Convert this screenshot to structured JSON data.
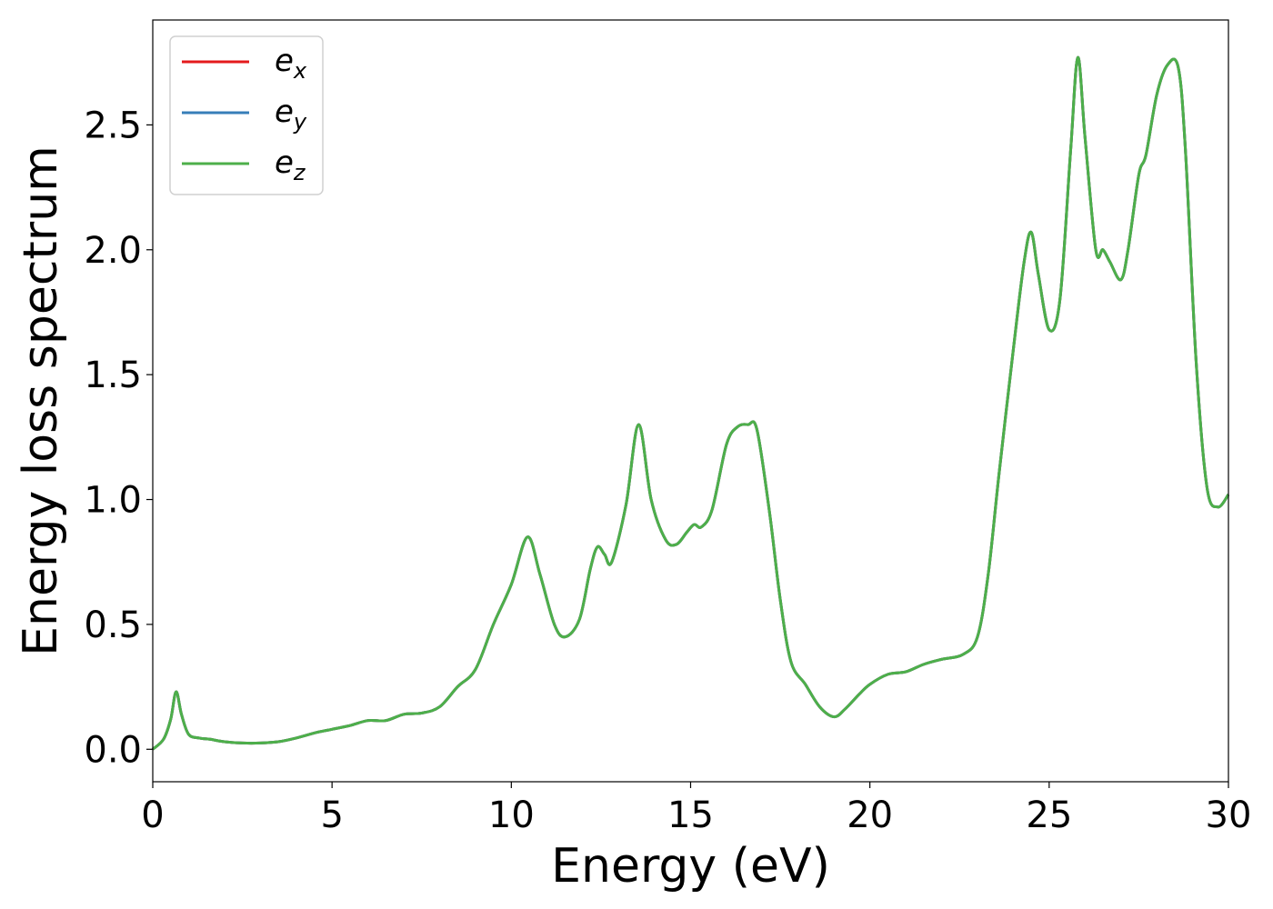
{
  "chart_data": {
    "type": "line",
    "title": "",
    "xlabel": "Energy (eV)",
    "ylabel": "Energy loss spectrum",
    "xlim": [
      0,
      30
    ],
    "ylim": [
      -0.13,
      2.92
    ],
    "xticks": [
      0,
      5,
      10,
      15,
      20,
      25,
      30
    ],
    "yticks": [
      0.0,
      0.5,
      1.0,
      1.5,
      2.0,
      2.5
    ],
    "xtick_labels": [
      "0",
      "5",
      "10",
      "15",
      "20",
      "25",
      "30"
    ],
    "ytick_labels": [
      "0.0",
      "0.5",
      "1.0",
      "1.5",
      "2.0",
      "2.5"
    ],
    "grid": false,
    "legend_position": "top-left",
    "series": [
      {
        "name_base": "e",
        "name_sub": "x",
        "color": "#e41a1c",
        "x": [
          0,
          0.3,
          0.5,
          0.65,
          0.8,
          1.0,
          1.3,
          1.6,
          2.0,
          2.5,
          3.0,
          3.5,
          4.0,
          4.5,
          5.0,
          5.5,
          6.0,
          6.5,
          7.0,
          7.5,
          8.0,
          8.5,
          9.0,
          9.5,
          10.0,
          10.45,
          10.8,
          11.2,
          11.5,
          11.9,
          12.2,
          12.4,
          12.6,
          12.8,
          13.2,
          13.55,
          13.9,
          14.3,
          14.6,
          14.9,
          15.1,
          15.3,
          15.6,
          16.0,
          16.3,
          16.6,
          16.85,
          17.2,
          17.5,
          17.8,
          18.2,
          18.6,
          19.0,
          19.3,
          19.7,
          20.0,
          20.5,
          21.0,
          21.5,
          22.0,
          22.6,
          23.0,
          23.3,
          23.6,
          24.0,
          24.3,
          24.5,
          24.7,
          25.0,
          25.3,
          25.6,
          25.8,
          26.0,
          26.3,
          26.5,
          26.7,
          27.0,
          27.2,
          27.5,
          27.7,
          28.0,
          28.3,
          28.6,
          28.8,
          29.1,
          29.4,
          29.7,
          30.0
        ],
        "y": [
          0.0,
          0.04,
          0.12,
          0.23,
          0.14,
          0.06,
          0.045,
          0.04,
          0.03,
          0.025,
          0.025,
          0.03,
          0.045,
          0.065,
          0.08,
          0.095,
          0.115,
          0.115,
          0.14,
          0.145,
          0.17,
          0.25,
          0.32,
          0.5,
          0.66,
          0.85,
          0.7,
          0.5,
          0.45,
          0.52,
          0.72,
          0.81,
          0.78,
          0.75,
          0.98,
          1.3,
          1.0,
          0.84,
          0.82,
          0.87,
          0.9,
          0.89,
          0.96,
          1.22,
          1.29,
          1.3,
          1.28,
          0.95,
          0.6,
          0.35,
          0.26,
          0.17,
          0.13,
          0.16,
          0.22,
          0.26,
          0.3,
          0.31,
          0.34,
          0.36,
          0.38,
          0.45,
          0.7,
          1.1,
          1.6,
          1.95,
          2.07,
          1.9,
          1.68,
          1.8,
          2.4,
          2.77,
          2.45,
          2.0,
          2.0,
          1.95,
          1.88,
          2.0,
          2.3,
          2.38,
          2.62,
          2.74,
          2.73,
          2.4,
          1.55,
          1.05,
          0.97,
          1.02
        ]
      },
      {
        "name_base": "e",
        "name_sub": "y",
        "color": "#377eb8",
        "x": [
          0,
          0.3,
          0.5,
          0.65,
          0.8,
          1.0,
          1.3,
          1.6,
          2.0,
          2.5,
          3.0,
          3.5,
          4.0,
          4.5,
          5.0,
          5.5,
          6.0,
          6.5,
          7.0,
          7.5,
          8.0,
          8.5,
          9.0,
          9.5,
          10.0,
          10.45,
          10.8,
          11.2,
          11.5,
          11.9,
          12.2,
          12.4,
          12.6,
          12.8,
          13.2,
          13.55,
          13.9,
          14.3,
          14.6,
          14.9,
          15.1,
          15.3,
          15.6,
          16.0,
          16.3,
          16.6,
          16.85,
          17.2,
          17.5,
          17.8,
          18.2,
          18.6,
          19.0,
          19.3,
          19.7,
          20.0,
          20.5,
          21.0,
          21.5,
          22.0,
          22.6,
          23.0,
          23.3,
          23.6,
          24.0,
          24.3,
          24.5,
          24.7,
          25.0,
          25.3,
          25.6,
          25.8,
          26.0,
          26.3,
          26.5,
          26.7,
          27.0,
          27.2,
          27.5,
          27.7,
          28.0,
          28.3,
          28.6,
          28.8,
          29.1,
          29.4,
          29.7,
          30.0
        ],
        "y": [
          0.0,
          0.04,
          0.12,
          0.23,
          0.14,
          0.06,
          0.045,
          0.04,
          0.03,
          0.025,
          0.025,
          0.03,
          0.045,
          0.065,
          0.08,
          0.095,
          0.115,
          0.115,
          0.14,
          0.145,
          0.17,
          0.25,
          0.32,
          0.5,
          0.66,
          0.85,
          0.7,
          0.5,
          0.45,
          0.52,
          0.72,
          0.81,
          0.78,
          0.75,
          0.98,
          1.3,
          1.0,
          0.84,
          0.82,
          0.87,
          0.9,
          0.89,
          0.96,
          1.22,
          1.29,
          1.3,
          1.28,
          0.95,
          0.6,
          0.35,
          0.26,
          0.17,
          0.13,
          0.16,
          0.22,
          0.26,
          0.3,
          0.31,
          0.34,
          0.36,
          0.38,
          0.45,
          0.7,
          1.1,
          1.6,
          1.95,
          2.07,
          1.9,
          1.68,
          1.8,
          2.4,
          2.77,
          2.45,
          2.0,
          2.0,
          1.95,
          1.88,
          2.0,
          2.3,
          2.38,
          2.62,
          2.74,
          2.73,
          2.4,
          1.55,
          1.05,
          0.97,
          1.02
        ]
      },
      {
        "name_base": "e",
        "name_sub": "z",
        "color": "#4daf4a",
        "x": [
          0,
          0.3,
          0.5,
          0.65,
          0.8,
          1.0,
          1.3,
          1.6,
          2.0,
          2.5,
          3.0,
          3.5,
          4.0,
          4.5,
          5.0,
          5.5,
          6.0,
          6.5,
          7.0,
          7.5,
          8.0,
          8.5,
          9.0,
          9.5,
          10.0,
          10.45,
          10.8,
          11.2,
          11.5,
          11.9,
          12.2,
          12.4,
          12.6,
          12.8,
          13.2,
          13.55,
          13.9,
          14.3,
          14.6,
          14.9,
          15.1,
          15.3,
          15.6,
          16.0,
          16.3,
          16.6,
          16.85,
          17.2,
          17.5,
          17.8,
          18.2,
          18.6,
          19.0,
          19.3,
          19.7,
          20.0,
          20.5,
          21.0,
          21.5,
          22.0,
          22.6,
          23.0,
          23.3,
          23.6,
          24.0,
          24.3,
          24.5,
          24.7,
          25.0,
          25.3,
          25.6,
          25.8,
          26.0,
          26.3,
          26.5,
          26.7,
          27.0,
          27.2,
          27.5,
          27.7,
          28.0,
          28.3,
          28.6,
          28.8,
          29.1,
          29.4,
          29.7,
          30.0
        ],
        "y": [
          0.0,
          0.04,
          0.12,
          0.23,
          0.14,
          0.06,
          0.045,
          0.04,
          0.03,
          0.025,
          0.025,
          0.03,
          0.045,
          0.065,
          0.08,
          0.095,
          0.115,
          0.115,
          0.14,
          0.145,
          0.17,
          0.25,
          0.32,
          0.5,
          0.66,
          0.85,
          0.7,
          0.5,
          0.45,
          0.52,
          0.72,
          0.81,
          0.78,
          0.75,
          0.98,
          1.3,
          1.0,
          0.84,
          0.82,
          0.87,
          0.9,
          0.89,
          0.96,
          1.22,
          1.29,
          1.3,
          1.28,
          0.95,
          0.6,
          0.35,
          0.26,
          0.17,
          0.13,
          0.16,
          0.22,
          0.26,
          0.3,
          0.31,
          0.34,
          0.36,
          0.38,
          0.45,
          0.7,
          1.1,
          1.6,
          1.95,
          2.07,
          1.9,
          1.68,
          1.8,
          2.4,
          2.77,
          2.45,
          2.0,
          2.0,
          1.95,
          1.88,
          2.0,
          2.3,
          2.38,
          2.62,
          2.74,
          2.73,
          2.4,
          1.55,
          1.05,
          0.97,
          1.02
        ]
      }
    ]
  }
}
